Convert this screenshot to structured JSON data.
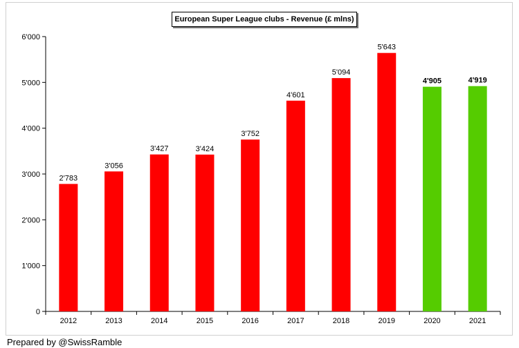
{
  "footer": {
    "credit": "Prepared by @SwissRamble"
  },
  "colors": {
    "regular_bar": "#ff0000",
    "highlight_bar": "#55cc00",
    "axis": "#000000"
  },
  "chart_data": {
    "type": "bar",
    "title": "European Super League clubs - Revenue (£ mlns)",
    "xlabel": "",
    "ylabel": "",
    "categories": [
      "2012",
      "2013",
      "2014",
      "2015",
      "2016",
      "2017",
      "2018",
      "2019",
      "2020",
      "2021"
    ],
    "values": [
      2783,
      3056,
      3427,
      3424,
      3752,
      4601,
      5094,
      5643,
      4905,
      4919
    ],
    "value_labels": [
      "2'783",
      "3'056",
      "3'427",
      "3'424",
      "3'752",
      "4'601",
      "5'094",
      "5'643",
      "4'905",
      "4'919"
    ],
    "highlighted": [
      "2020",
      "2021"
    ],
    "ylim": [
      0,
      6000
    ],
    "yticks": [
      0,
      1000,
      2000,
      3000,
      4000,
      5000,
      6000
    ],
    "ytick_labels": [
      "0",
      "1'000",
      "2'000",
      "3'000",
      "4'000",
      "5'000",
      "6'000"
    ],
    "grid": false,
    "legend": "none"
  }
}
